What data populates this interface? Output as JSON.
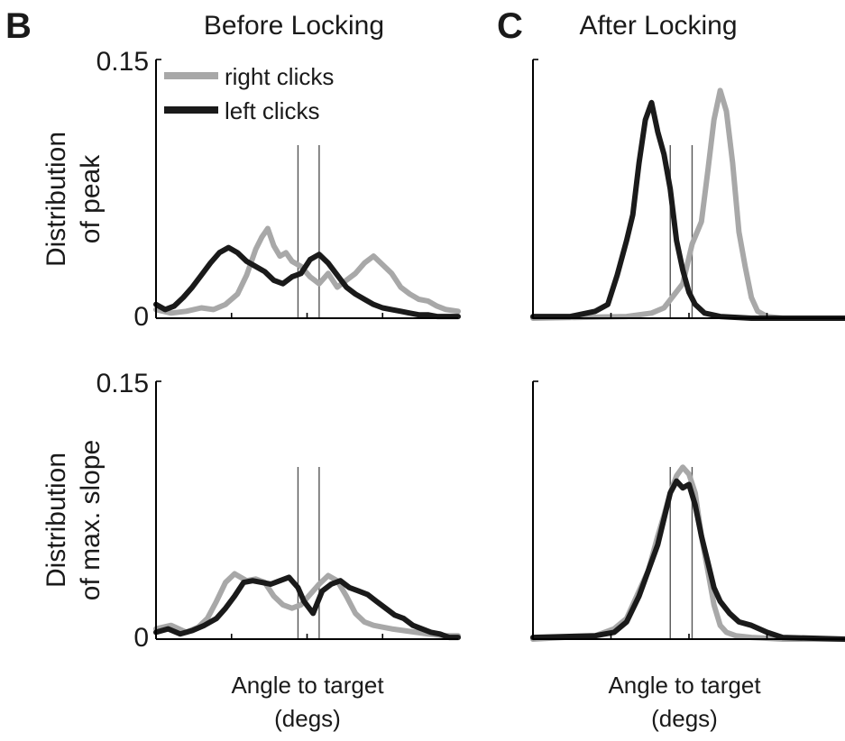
{
  "labels": {
    "panel_b": "B",
    "panel_c": "C",
    "title_before": "Before Locking",
    "title_after": "After Locking",
    "ylabel_top": [
      "Distribution",
      "of peak"
    ],
    "ylabel_bottom": [
      "Distribution",
      "of max. slope"
    ],
    "xlabel": [
      "Angle to target",
      "(degs)"
    ]
  },
  "legend": [
    {
      "label": "right clicks",
      "color": "#a8a8a8"
    },
    {
      "label": "left clicks",
      "color": "#1a1a1a"
    }
  ],
  "chart_data": [
    {
      "type": "line",
      "id": "before-peak",
      "title": "Before Locking",
      "ylabel": "Distribution of peak",
      "xlabel": "Angle to target (degs)",
      "xlim": [
        0,
        1
      ],
      "ylim": [
        0,
        0.15
      ],
      "yticks": [
        "0.15",
        "0"
      ],
      "ref_lines": [
        0.47,
        0.54
      ],
      "series": [
        {
          "name": "right clicks",
          "color": "#a8a8a8",
          "x": [
            0,
            0.05,
            0.1,
            0.15,
            0.19,
            0.23,
            0.27,
            0.3,
            0.33,
            0.35,
            0.37,
            0.39,
            0.41,
            0.43,
            0.45,
            0.48,
            0.51,
            0.54,
            0.57,
            0.6,
            0.63,
            0.66,
            0.69,
            0.72,
            0.75,
            0.78,
            0.81,
            0.84,
            0.87,
            0.9,
            0.93,
            0.96,
            1.0
          ],
          "y": [
            0.005,
            0.003,
            0.004,
            0.006,
            0.005,
            0.008,
            0.014,
            0.025,
            0.04,
            0.047,
            0.052,
            0.042,
            0.036,
            0.038,
            0.033,
            0.03,
            0.024,
            0.02,
            0.026,
            0.018,
            0.022,
            0.026,
            0.032,
            0.036,
            0.031,
            0.026,
            0.018,
            0.014,
            0.011,
            0.01,
            0.007,
            0.005,
            0.004
          ]
        },
        {
          "name": "left clicks",
          "color": "#1a1a1a",
          "x": [
            0,
            0.03,
            0.06,
            0.09,
            0.12,
            0.15,
            0.18,
            0.21,
            0.24,
            0.27,
            0.3,
            0.33,
            0.36,
            0.39,
            0.42,
            0.45,
            0.48,
            0.51,
            0.54,
            0.57,
            0.6,
            0.63,
            0.66,
            0.69,
            0.72,
            0.75,
            0.78,
            0.81,
            0.84,
            0.87,
            0.9,
            0.93,
            0.96,
            1.0
          ],
          "y": [
            0.008,
            0.005,
            0.007,
            0.012,
            0.018,
            0.025,
            0.032,
            0.038,
            0.041,
            0.038,
            0.033,
            0.03,
            0.027,
            0.022,
            0.02,
            0.024,
            0.026,
            0.034,
            0.037,
            0.032,
            0.025,
            0.018,
            0.014,
            0.011,
            0.008,
            0.006,
            0.005,
            0.004,
            0.003,
            0.002,
            0.002,
            0.001,
            0.001,
            0.001
          ]
        }
      ]
    },
    {
      "type": "line",
      "id": "after-peak",
      "title": "After Locking",
      "xlim": [
        0,
        1
      ],
      "ylim": [
        0,
        0.15
      ],
      "yticks": [
        "",
        ""
      ],
      "ref_lines": [
        0.44,
        0.51
      ],
      "series": [
        {
          "name": "right clicks",
          "color": "#a8a8a8",
          "x": [
            0,
            0.3,
            0.38,
            0.42,
            0.45,
            0.48,
            0.51,
            0.54,
            0.56,
            0.58,
            0.6,
            0.62,
            0.64,
            0.66,
            0.68,
            0.7,
            0.72,
            0.75,
            0.8,
            0.9,
            1.0
          ],
          "y": [
            0,
            0.001,
            0.003,
            0.006,
            0.013,
            0.02,
            0.043,
            0.056,
            0.085,
            0.115,
            0.132,
            0.12,
            0.09,
            0.05,
            0.03,
            0.012,
            0.004,
            0.001,
            0,
            0,
            0
          ]
        },
        {
          "name": "left clicks",
          "color": "#1a1a1a",
          "x": [
            0,
            0.12,
            0.2,
            0.24,
            0.27,
            0.3,
            0.32,
            0.34,
            0.36,
            0.38,
            0.4,
            0.42,
            0.44,
            0.46,
            0.48,
            0.5,
            0.52,
            0.55,
            0.6,
            0.7,
            1.0
          ],
          "y": [
            0.001,
            0.001,
            0.004,
            0.008,
            0.025,
            0.045,
            0.06,
            0.09,
            0.115,
            0.125,
            0.108,
            0.095,
            0.075,
            0.045,
            0.028,
            0.015,
            0.008,
            0.003,
            0.001,
            0,
            0
          ]
        }
      ]
    },
    {
      "type": "line",
      "id": "before-slope",
      "ylabel": "Distribution of max. slope",
      "xlabel": "Angle to target (degs)",
      "xlim": [
        0,
        1
      ],
      "ylim": [
        0,
        0.15
      ],
      "yticks": [
        "0.15",
        "0"
      ],
      "ref_lines": [
        0.47,
        0.54
      ],
      "series": [
        {
          "name": "right clicks",
          "color": "#a8a8a8",
          "x": [
            0,
            0.05,
            0.1,
            0.14,
            0.17,
            0.2,
            0.23,
            0.26,
            0.28,
            0.3,
            0.33,
            0.36,
            0.39,
            0.42,
            0.45,
            0.48,
            0.51,
            0.54,
            0.57,
            0.6,
            0.63,
            0.66,
            0.69,
            0.72,
            0.75,
            0.78,
            0.82,
            0.86,
            0.9,
            0.95,
            1.0
          ],
          "y": [
            0.006,
            0.008,
            0.004,
            0.007,
            0.012,
            0.022,
            0.033,
            0.038,
            0.036,
            0.034,
            0.035,
            0.033,
            0.025,
            0.02,
            0.018,
            0.02,
            0.026,
            0.032,
            0.037,
            0.034,
            0.025,
            0.015,
            0.01,
            0.008,
            0.007,
            0.006,
            0.005,
            0.004,
            0.003,
            0.002,
            0.002
          ]
        },
        {
          "name": "left clicks",
          "color": "#1a1a1a",
          "x": [
            0,
            0.04,
            0.08,
            0.12,
            0.16,
            0.2,
            0.23,
            0.26,
            0.29,
            0.32,
            0.35,
            0.38,
            0.41,
            0.44,
            0.47,
            0.49,
            0.52,
            0.55,
            0.58,
            0.61,
            0.64,
            0.67,
            0.7,
            0.73,
            0.76,
            0.79,
            0.82,
            0.85,
            0.88,
            0.91,
            0.94,
            0.97,
            1.0
          ],
          "y": [
            0.004,
            0.006,
            0.003,
            0.005,
            0.008,
            0.012,
            0.018,
            0.025,
            0.033,
            0.034,
            0.033,
            0.032,
            0.034,
            0.036,
            0.03,
            0.022,
            0.015,
            0.028,
            0.032,
            0.034,
            0.03,
            0.028,
            0.026,
            0.022,
            0.018,
            0.014,
            0.012,
            0.008,
            0.006,
            0.004,
            0.003,
            0.001,
            0.001
          ]
        }
      ]
    },
    {
      "type": "line",
      "id": "after-slope",
      "xlabel": "Angle to target (degs)",
      "xlim": [
        0,
        1
      ],
      "ylim": [
        0,
        0.15
      ],
      "yticks": [
        "",
        ""
      ],
      "ref_lines": [
        0.44,
        0.51
      ],
      "series": [
        {
          "name": "right clicks",
          "color": "#a8a8a8",
          "x": [
            0,
            0.2,
            0.26,
            0.3,
            0.34,
            0.37,
            0.4,
            0.42,
            0.44,
            0.46,
            0.48,
            0.5,
            0.52,
            0.54,
            0.56,
            0.58,
            0.6,
            0.62,
            0.65,
            0.7,
            0.8,
            1.0
          ],
          "y": [
            0,
            0.002,
            0.006,
            0.012,
            0.028,
            0.04,
            0.06,
            0.072,
            0.085,
            0.095,
            0.1,
            0.096,
            0.085,
            0.06,
            0.04,
            0.02,
            0.008,
            0.004,
            0.002,
            0.001,
            0,
            0
          ]
        },
        {
          "name": "left clicks",
          "color": "#1a1a1a",
          "x": [
            0,
            0.2,
            0.26,
            0.3,
            0.34,
            0.37,
            0.4,
            0.42,
            0.44,
            0.46,
            0.48,
            0.5,
            0.52,
            0.54,
            0.56,
            0.58,
            0.6,
            0.63,
            0.66,
            0.7,
            0.75,
            0.8,
            1.0
          ],
          "y": [
            0.001,
            0.002,
            0.004,
            0.01,
            0.025,
            0.04,
            0.055,
            0.07,
            0.085,
            0.092,
            0.088,
            0.09,
            0.078,
            0.06,
            0.045,
            0.03,
            0.022,
            0.015,
            0.01,
            0.008,
            0.004,
            0.001,
            0
          ]
        }
      ]
    }
  ]
}
